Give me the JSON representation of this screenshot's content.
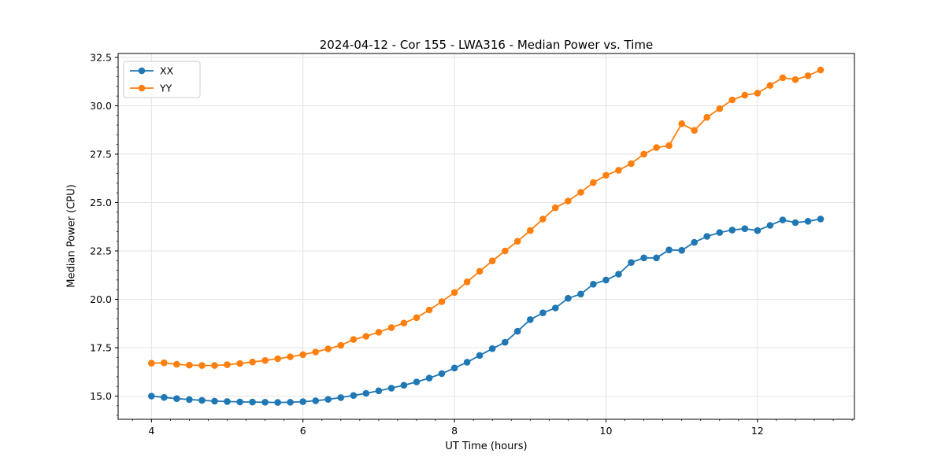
{
  "title": "2024-04-12 - Cor 155 - LWA316 - Median Power vs. Time",
  "chart_data": {
    "type": "line",
    "title": "2024-04-12 - Cor 155 - LWA316 - Median Power vs. Time",
    "xlabel": "UT Time (hours)",
    "ylabel": "Median Power (CPU)",
    "xlim": [
      3.56,
      13.28
    ],
    "ylim": [
      13.8,
      32.7
    ],
    "x_ticks": [
      4,
      6,
      8,
      10,
      12
    ],
    "y_ticks": [
      15.0,
      17.5,
      20.0,
      22.5,
      25.0,
      27.5,
      30.0,
      32.5
    ],
    "x_minor_step": 0.25,
    "y_minor_step": 0.5,
    "grid": true,
    "legend_position": "upper left",
    "marker": "o",
    "x": [
      4.0,
      4.167,
      4.333,
      4.5,
      4.667,
      4.833,
      5.0,
      5.167,
      5.333,
      5.5,
      5.667,
      5.833,
      6.0,
      6.167,
      6.333,
      6.5,
      6.667,
      6.833,
      7.0,
      7.167,
      7.333,
      7.5,
      7.667,
      7.833,
      8.0,
      8.167,
      8.333,
      8.5,
      8.667,
      8.833,
      9.0,
      9.167,
      9.333,
      9.5,
      9.667,
      9.833,
      10.0,
      10.167,
      10.333,
      10.5,
      10.667,
      10.833,
      11.0,
      11.167,
      11.333,
      11.5,
      11.667,
      11.833,
      12.0,
      12.167,
      12.333,
      12.5,
      12.667,
      12.833
    ],
    "series": [
      {
        "name": "XX",
        "color": "#1f77b4",
        "values": [
          15.0,
          14.93,
          14.87,
          14.82,
          14.78,
          14.74,
          14.72,
          14.7,
          14.69,
          14.68,
          14.67,
          14.68,
          14.71,
          14.76,
          14.83,
          14.92,
          15.03,
          15.14,
          15.27,
          15.41,
          15.56,
          15.73,
          15.93,
          16.16,
          16.45,
          16.75,
          17.1,
          17.45,
          17.78,
          18.35,
          18.95,
          19.3,
          19.55,
          20.05,
          20.27,
          20.78,
          21.0,
          21.3,
          21.9,
          22.14,
          22.14,
          22.55,
          22.53,
          22.94,
          23.25,
          23.45,
          23.58,
          23.65,
          23.55,
          23.82,
          24.1,
          23.96,
          24.03,
          24.15
        ]
      },
      {
        "name": "YY",
        "color": "#ff7f0e",
        "values": [
          16.7,
          16.72,
          16.64,
          16.6,
          16.58,
          16.58,
          16.62,
          16.68,
          16.76,
          16.84,
          16.93,
          17.03,
          17.14,
          17.28,
          17.44,
          17.62,
          17.92,
          18.09,
          18.3,
          18.54,
          18.77,
          19.05,
          19.45,
          19.88,
          20.35,
          20.9,
          21.45,
          21.98,
          22.5,
          23.0,
          23.55,
          24.15,
          24.73,
          25.08,
          25.53,
          26.03,
          26.41,
          26.67,
          27.01,
          27.5,
          27.84,
          27.94,
          29.07,
          28.73,
          29.4,
          29.85,
          30.3,
          30.55,
          30.65,
          31.05,
          31.45,
          31.35,
          31.55,
          31.85
        ]
      }
    ],
    "colors": {
      "grid": "#e3e3e3",
      "spine": "#000000",
      "background": "#ffffff"
    }
  }
}
